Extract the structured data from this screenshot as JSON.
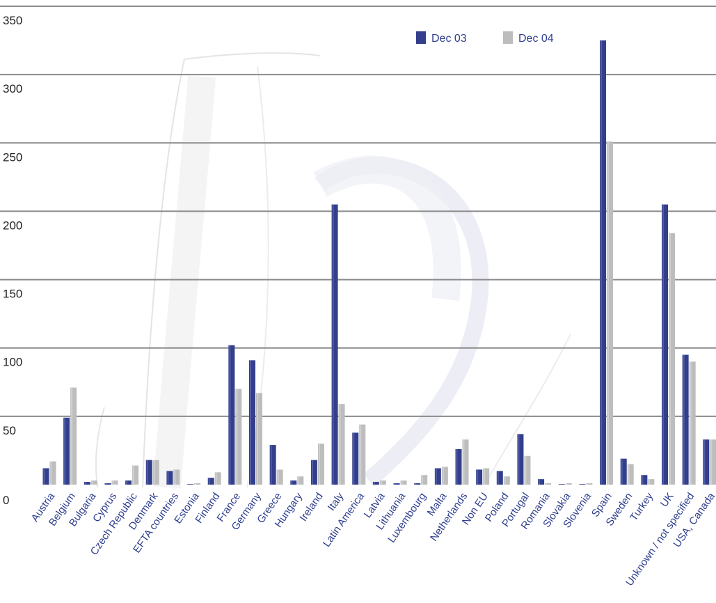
{
  "chart_data": {
    "type": "bar",
    "categories": [
      "Austria",
      "Belgium",
      "Bulgaria",
      "Cyprus",
      "Czech Republic",
      "Denmark",
      "EFTA countries",
      "Estonia",
      "Finland",
      "France",
      "Germany",
      "Greece",
      "Hungary",
      "Ireland",
      "Italy",
      "Latin America",
      "Latvia",
      "Lithuania",
      "Luxembourg",
      "Malta",
      "Netherlands",
      "Non EU",
      "Poland",
      "Portugal",
      "Romania",
      "Slovakia",
      "Slovenia",
      "Spain",
      "Sweden",
      "Turkey",
      "UK",
      "Unknown / not specified",
      "USA, Canada"
    ],
    "series": [
      {
        "name": "Dec 03",
        "color": "#333f8c",
        "values": [
          12,
          49,
          2,
          1,
          3,
          18,
          10,
          0,
          5,
          102,
          91,
          29,
          3,
          18,
          205,
          38,
          2,
          1,
          1,
          12,
          26,
          11,
          10,
          37,
          4,
          0,
          0,
          325,
          19,
          7,
          205,
          95,
          33
        ]
      },
      {
        "name": "Dec 04",
        "color": "#bdbdbd",
        "values": [
          17,
          71,
          3,
          3,
          14,
          18,
          11,
          1,
          9,
          70,
          67,
          11,
          6,
          30,
          59,
          44,
          3,
          3,
          7,
          13,
          33,
          12,
          6,
          21,
          1,
          1,
          1,
          251,
          15,
          4,
          184,
          90,
          33
        ]
      }
    ],
    "ylim": [
      0,
      350
    ],
    "yticks": [
      0,
      50,
      100,
      150,
      200,
      250,
      300,
      350
    ],
    "grid": true,
    "legend_position": "top-right",
    "title": "",
    "xlabel": "",
    "ylabel": ""
  }
}
